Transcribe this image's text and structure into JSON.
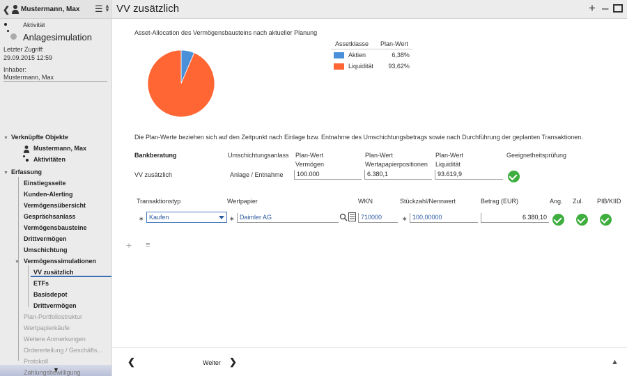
{
  "sidebar": {
    "user_name": "Mustermann, Max",
    "activity_label": "Aktivität",
    "simulation_label": "Anlagesimulation",
    "last_access_label": "Letzter Zugriff:",
    "last_access_value": "29.09.2015 12:59",
    "owner_label": "Inhaber:",
    "owner_value": "Mustermann, Max",
    "tree": {
      "linked_objects": "Verknüpfte Objekte",
      "linked_user": "Mustermann, Max",
      "linked_activities": "Aktivitäten",
      "capture": "Erfassung",
      "items": [
        "Einstiegsseite",
        "Kunden-Alerting",
        "Vermögensübersicht",
        "Gesprächsanlass",
        "Vermögensbausteine",
        "Drittvermögen",
        "Umschichtung"
      ],
      "simulations": "Vermögenssimulationen",
      "sim_items": [
        "VV zusätzlich",
        "ETFs",
        "Basisdepot",
        "Drittvermögen"
      ],
      "dim_items": [
        "Plan-Portfoliostruktur",
        "Wertpapierkäufe",
        "Weitere Anmerkungen",
        "Ordererteilung / Geschäfts...",
        "Protokoll",
        "Zahlungsbewilligung"
      ]
    }
  },
  "header": {
    "title": "VV zusätzlich"
  },
  "allocation": {
    "title": "Asset-Allocation des Vermögensbausteins nach aktueller Planung",
    "col_asset": "Assetklasse",
    "col_value": "Plan-Wert",
    "rows": [
      {
        "name": "Aktien",
        "value": "6,38%",
        "color": "#4a90d9"
      },
      {
        "name": "Liquidität",
        "value": "93,62%",
        "color": "#ff6633"
      }
    ]
  },
  "chart_data": {
    "type": "pie",
    "slices": [
      {
        "label": "Aktien",
        "value": 6.38,
        "color": "#4a90d9"
      },
      {
        "label": "Liquidität",
        "value": 93.62,
        "color": "#ff6633"
      }
    ]
  },
  "note": "Die Plan-Werte beziehen sich auf den Zeitpunkt nach Einlage bzw. Entnahme des Umschichtungsbetrags sowie nach Durchführung der geplanten Transaktionen.",
  "summary": {
    "h_bank": "Bankberatung",
    "h_reason": "Umschichtungsanlass",
    "h_plan_assets_1": "Plan-Wert",
    "h_plan_assets_2": "Vermögen",
    "h_plan_sec_1": "Plan-Wert",
    "h_plan_sec_2": "Wertapapierpositionen",
    "h_plan_liq_1": "Plan-Wert",
    "h_plan_liq_2": "Liquidität",
    "h_suit": "Geeignetheitsprüfung",
    "row_name": "VV zusätzlich",
    "row_reason": "Anlage / Entnahme",
    "row_assets": "100.000",
    "row_sec": "6.380,1",
    "row_liq": "93.619,9"
  },
  "transactions": {
    "h_type": "Transaktionstyp",
    "h_security": "Wertpapier",
    "h_wkn": "WKN",
    "h_qty": "Stückzahl/Nennwert",
    "h_amount": "Betrag (EUR)",
    "h_ang": "Ang.",
    "h_zul": "Zul.",
    "h_pib": "PIB/KIID",
    "row": {
      "type": "Kaufen",
      "security": "Daimler AG",
      "wkn": "710000",
      "qty": "100,00000",
      "amount": "6.380,10"
    }
  },
  "footer": {
    "next_label": "Weiter"
  }
}
